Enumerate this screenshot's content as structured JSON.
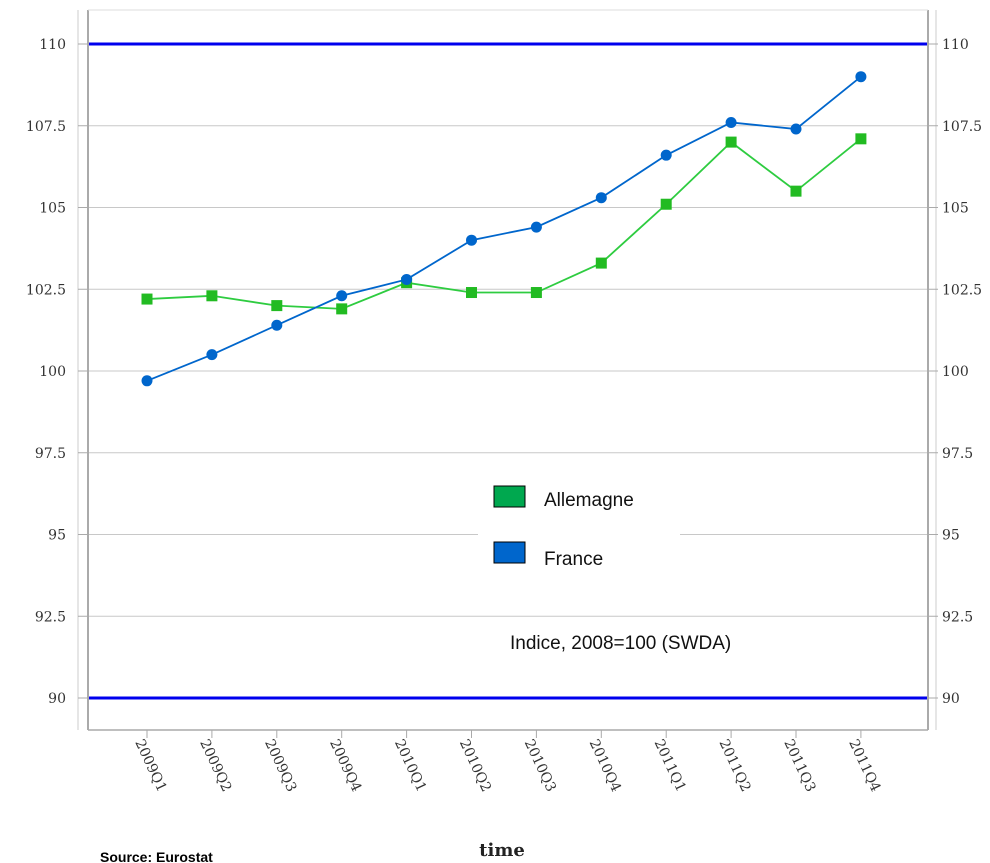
{
  "chart_data": {
    "type": "line",
    "categories": [
      "2009Q1",
      "2009Q2",
      "2009Q3",
      "2009Q4",
      "2010Q1",
      "2010Q2",
      "2010Q3",
      "2010Q4",
      "2011Q1",
      "2011Q2",
      "2011Q3",
      "2011Q4"
    ],
    "series": [
      {
        "name": "Allemagne",
        "color": "#2ecc40",
        "marker": "square",
        "values": [
          102.2,
          102.3,
          102.0,
          101.9,
          102.7,
          102.4,
          102.4,
          103.3,
          105.1,
          107.0,
          105.5,
          107.1
        ]
      },
      {
        "name": "France",
        "color": "#0066cc",
        "marker": "circle",
        "values": [
          99.7,
          100.5,
          101.4,
          102.3,
          102.8,
          104.0,
          104.4,
          105.3,
          106.6,
          107.6,
          107.4,
          109.0
        ]
      }
    ],
    "ylim": [
      89,
      111
    ],
    "yticks": [
      "90",
      "92.5",
      "95",
      "97.5",
      "100",
      "102.5",
      "105",
      "107.5",
      "110"
    ],
    "reference_lines": [
      90,
      110
    ],
    "reference_color": "#0000ee",
    "xlabel": "time",
    "annotation": "Indice, 2008=100 (SWDA)",
    "legend": {
      "position": "center",
      "entries": [
        "Allemagne",
        "France"
      ]
    },
    "grid": true
  },
  "source": "Source: Eurostat"
}
